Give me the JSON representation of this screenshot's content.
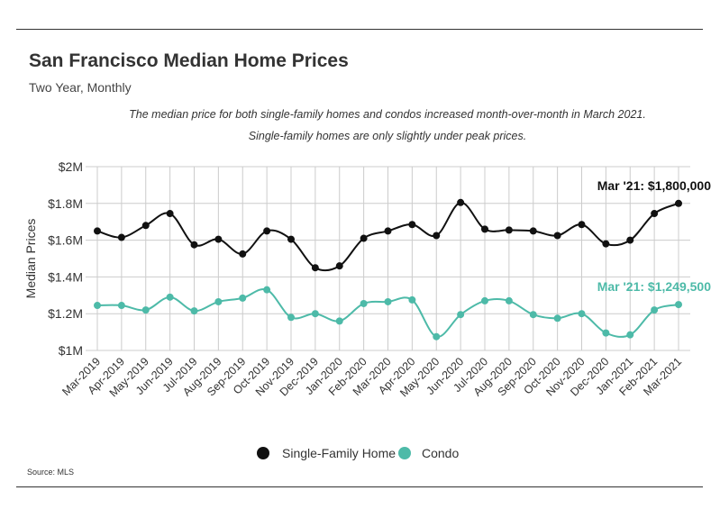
{
  "title": "San Francisco Median Home Prices",
  "subtitle": "Two Year, Monthly",
  "annotation": [
    "The median price for both single-family homes and condos increased month-over-month in March 2021.",
    "Single-family homes are only slightly under peak prices."
  ],
  "source": "Source: MLS",
  "colors": {
    "single_family": "#111111",
    "condo": "#4dbaa8",
    "grid": "#cccccc",
    "text": "#333333"
  },
  "chart_data": {
    "type": "line",
    "title": "San Francisco Median Home Prices",
    "subtitle": "Two Year, Monthly",
    "xlabel": "",
    "ylabel": "Median Prices",
    "categories": [
      "Mar-2019",
      "Apr-2019",
      "May-2019",
      "Jun-2019",
      "Jul-2019",
      "Aug-2019",
      "Sep-2019",
      "Oct-2019",
      "Nov-2019",
      "Dec-2019",
      "Jan-2020",
      "Feb-2020",
      "Mar-2020",
      "Apr-2020",
      "May-2020",
      "Jun-2020",
      "Jul-2020",
      "Aug-2020",
      "Sep-2020",
      "Oct-2020",
      "Nov-2020",
      "Dec-2020",
      "Jan-2021",
      "Feb-2021",
      "Mar-2021"
    ],
    "ylim": [
      1000000,
      2000000
    ],
    "yticks": [
      1000000,
      1200000,
      1400000,
      1600000,
      1800000,
      2000000
    ],
    "ytick_labels": [
      "$1M",
      "$1.2M",
      "$1.4M",
      "$1.6M",
      "$1.8M",
      "$2M"
    ],
    "grid": true,
    "legend_position": "bottom-center",
    "series": [
      {
        "name": "Single-Family Home",
        "color": "#111111",
        "values": [
          1650000,
          1615000,
          1680000,
          1745000,
          1575000,
          1605000,
          1525000,
          1650000,
          1605000,
          1450000,
          1460000,
          1610000,
          1650000,
          1685000,
          1625000,
          1805000,
          1660000,
          1655000,
          1650000,
          1625000,
          1685000,
          1580000,
          1600000,
          1745000,
          1800000
        ],
        "end_label": "Mar '21: $1,800,000"
      },
      {
        "name": "Condo",
        "color": "#4dbaa8",
        "values": [
          1245000,
          1245000,
          1220000,
          1290000,
          1215000,
          1265000,
          1285000,
          1330000,
          1180000,
          1200000,
          1160000,
          1255000,
          1265000,
          1275000,
          1075000,
          1195000,
          1270000,
          1270000,
          1195000,
          1175000,
          1200000,
          1095000,
          1085000,
          1220000,
          1249500
        ],
        "end_label": "Mar '21: $1,249,500"
      }
    ]
  }
}
